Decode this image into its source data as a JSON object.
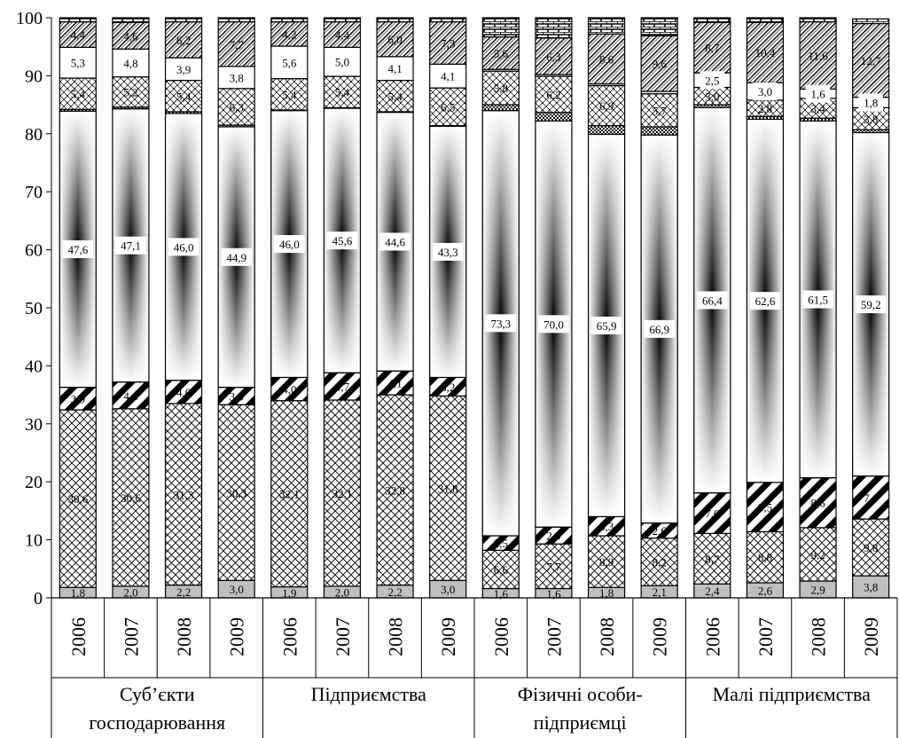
{
  "chart_data": {
    "type": "bar",
    "stacked": true,
    "ylim": [
      0,
      100
    ],
    "yticks": [
      0,
      10,
      20,
      30,
      40,
      50,
      60,
      70,
      80,
      90,
      100
    ],
    "grid": false,
    "legend": "none",
    "groups": [
      {
        "label_lines": [
          "Суб’єкти",
          "господарювання"
        ],
        "years": [
          "2006",
          "2007",
          "2008",
          "2009"
        ]
      },
      {
        "label_lines": [
          "Підприємства"
        ],
        "years": [
          "2006",
          "2007",
          "2008",
          "2009"
        ]
      },
      {
        "label_lines": [
          "Фізичні особи-",
          "підприємці"
        ],
        "years": [
          "2006",
          "2007",
          "2008",
          "2009"
        ]
      },
      {
        "label_lines": [
          "Малі підприємства"
        ],
        "years": [
          "2006",
          "2007",
          "2008",
          "2009"
        ]
      }
    ],
    "segment_patterns": [
      "gray",
      "crosshatch",
      "diag-thick",
      "gradient",
      "dots",
      "hatch",
      "plain",
      "dense-hatch",
      "brick"
    ],
    "bars": [
      {
        "segments": [
          1.8,
          30.6,
          3.9,
          47.6,
          0.3,
          5.4,
          5.3,
          4.4,
          0.7
        ],
        "labels": [
          "1,8",
          "30,6",
          "3,9",
          "47,6",
          "",
          "5,4",
          "5,3",
          "4,4",
          ""
        ]
      },
      {
        "segments": [
          2.0,
          30.6,
          4.6,
          47.1,
          0.3,
          5.2,
          4.8,
          4.6,
          0.8
        ],
        "labels": [
          "2,0",
          "30,6",
          "4,6",
          "47,1",
          "",
          "5,2",
          "4,8",
          "4,6",
          ""
        ]
      },
      {
        "segments": [
          2.2,
          31.3,
          4.0,
          46.0,
          0.3,
          5.4,
          3.9,
          6.2,
          0.7
        ],
        "labels": [
          "2,2",
          "31,3",
          "4,0",
          "46,0",
          "",
          "5,4",
          "3,9",
          "6,2",
          ""
        ]
      },
      {
        "segments": [
          3.0,
          30.3,
          3.0,
          44.9,
          0.3,
          6.3,
          3.8,
          7.7,
          0.7
        ],
        "labels": [
          "3,0",
          "30,3",
          "3,0",
          "44,9",
          "",
          "6,3",
          "3,8",
          "7,7",
          ""
        ]
      },
      {
        "segments": [
          1.9,
          32.1,
          4.0,
          46.0,
          0.1,
          5.4,
          5.6,
          4.2,
          0.7
        ],
        "labels": [
          "1,9",
          "32,1",
          "4,0",
          "46,0",
          "",
          "5,4",
          "5,6",
          "4,2",
          ""
        ]
      },
      {
        "segments": [
          2.0,
          32.1,
          4.7,
          45.6,
          0.1,
          5.4,
          5.0,
          4.4,
          0.7
        ],
        "labels": [
          "2,0",
          "32,1",
          "4,7",
          "45,6",
          "",
          "5,4",
          "5,0",
          "4,4",
          ""
        ]
      },
      {
        "segments": [
          2.2,
          32.8,
          4.1,
          44.6,
          0.1,
          5.4,
          4.1,
          6.0,
          0.7
        ],
        "labels": [
          "2,2",
          "32,8",
          "4,1",
          "44,6",
          "",
          "5,4",
          "4,1",
          "6,0",
          ""
        ]
      },
      {
        "segments": [
          3.0,
          31.8,
          3.2,
          43.3,
          0.1,
          6.5,
          4.1,
          7.3,
          0.7
        ],
        "labels": [
          "3,0",
          "31,8",
          "3,2",
          "43,3",
          "",
          "6,5",
          "4,1",
          "7,3",
          ""
        ]
      },
      {
        "segments": [
          1.6,
          6.6,
          2.5,
          73.3,
          1.0,
          5.8,
          0.3,
          5.6,
          3.3
        ],
        "labels": [
          "1,6",
          "6,6",
          "2,5",
          "73,3",
          "",
          "5,8",
          "",
          "5,6",
          ""
        ]
      },
      {
        "segments": [
          1.6,
          7.7,
          2.9,
          70.0,
          1.5,
          6.2,
          0.3,
          6.3,
          3.5
        ],
        "labels": [
          "1,6",
          "7,7",
          "2,9",
          "70,0",
          "",
          "6,2",
          "",
          "6,3",
          ""
        ]
      },
      {
        "segments": [
          1.8,
          8.9,
          3.3,
          65.9,
          1.5,
          6.9,
          0.3,
          8.6,
          2.8
        ],
        "labels": [
          "1,8",
          "8,9",
          "3,3",
          "65,9",
          "",
          "6,9",
          "",
          "8,6",
          ""
        ]
      },
      {
        "segments": [
          2.1,
          8.2,
          2.6,
          66.9,
          1.4,
          5.7,
          0.4,
          9.6,
          3.1
        ],
        "labels": [
          "2,1",
          "8,2",
          "2,6",
          "66,9",
          "",
          "5,7",
          "",
          "9,6",
          ""
        ]
      },
      {
        "segments": [
          2.4,
          8.7,
          7.0,
          66.4,
          0.5,
          3.0,
          2.5,
          8.7,
          0.8
        ],
        "labels": [
          "2,4",
          "8,7",
          "7,0",
          "66,4",
          "",
          "3,0",
          "2,5",
          "8,7",
          ""
        ]
      },
      {
        "segments": [
          2.6,
          8.8,
          8.5,
          62.6,
          0.5,
          2.8,
          3.0,
          10.4,
          0.8
        ],
        "labels": [
          "2,6",
          "8,8",
          "8,5",
          "62,6",
          "",
          "2,8",
          "3,0",
          "10,4",
          ""
        ]
      },
      {
        "segments": [
          2.9,
          9.2,
          8.6,
          61.5,
          0.5,
          3.4,
          1.6,
          11.6,
          0.7
        ],
        "labels": [
          "2,9",
          "9,2",
          "8,6",
          "61,5",
          "",
          "3,4",
          "1,6",
          "11,6",
          ""
        ]
      },
      {
        "segments": [
          3.8,
          9.8,
          7.4,
          59.2,
          0.5,
          3.8,
          1.8,
          12.7,
          0.8
        ],
        "labels": [
          "3,8",
          "9,8",
          "7,4",
          "59,2",
          "",
          "3,8",
          "1,8",
          "12,7",
          ""
        ]
      }
    ]
  }
}
